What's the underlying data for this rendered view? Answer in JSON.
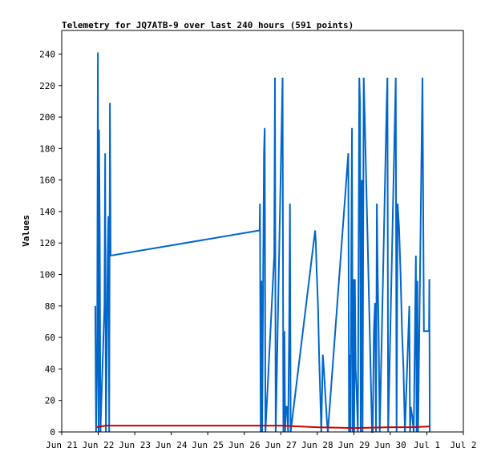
{
  "chart_data": {
    "type": "line",
    "title": "Telemetry for JQ7ATB-9 over last 240 hours (591 points)",
    "xlabel": "",
    "ylabel": "Values",
    "xlim": [
      0,
      11
    ],
    "ylim": [
      0,
      255
    ],
    "x_unit": "days since Jun 21",
    "x_ticks": [
      {
        "value": 0,
        "label": "Jun 21"
      },
      {
        "value": 1,
        "label": "Jun 22"
      },
      {
        "value": 2,
        "label": "Jun 23"
      },
      {
        "value": 3,
        "label": "Jun 24"
      },
      {
        "value": 4,
        "label": "Jun 25"
      },
      {
        "value": 5,
        "label": "Jun 26"
      },
      {
        "value": 6,
        "label": "Jun 27"
      },
      {
        "value": 7,
        "label": "Jun 28"
      },
      {
        "value": 8,
        "label": "Jun 29"
      },
      {
        "value": 9,
        "label": "Jun 30"
      },
      {
        "value": 10,
        "label": "Jul 1"
      },
      {
        "value": 11,
        "label": "Jul 2"
      }
    ],
    "y_ticks": [
      0,
      20,
      40,
      60,
      80,
      100,
      120,
      140,
      160,
      180,
      200,
      220,
      240
    ],
    "grid": false,
    "legend": "none",
    "series": [
      {
        "color": "#0066cc",
        "points": [
          [
            0.92,
            80
          ],
          [
            0.94,
            0
          ],
          [
            0.97,
            48
          ],
          [
            0.99,
            241
          ],
          [
            1.01,
            0
          ],
          [
            1.02,
            192
          ],
          [
            1.04,
            128
          ],
          [
            1.06,
            0
          ],
          [
            1.17,
            80
          ],
          [
            1.19,
            177
          ],
          [
            1.21,
            0
          ],
          [
            1.26,
            112
          ],
          [
            1.28,
            137
          ],
          [
            1.3,
            0
          ],
          [
            1.32,
            209
          ],
          [
            1.34,
            112
          ],
          [
            5.42,
            128
          ],
          [
            5.43,
            145
          ],
          [
            5.45,
            0
          ],
          [
            5.47,
            96
          ],
          [
            5.49,
            0
          ],
          [
            5.54,
            177
          ],
          [
            5.56,
            193
          ],
          [
            5.58,
            0
          ],
          [
            5.82,
            112
          ],
          [
            5.84,
            225
          ],
          [
            5.86,
            0
          ],
          [
            6.05,
            225
          ],
          [
            6.07,
            0
          ],
          [
            6.1,
            64
          ],
          [
            6.12,
            0
          ],
          [
            6.14,
            16
          ],
          [
            6.17,
            16
          ],
          [
            6.2,
            0
          ],
          [
            6.23,
            64
          ],
          [
            6.25,
            145
          ],
          [
            6.27,
            0
          ],
          [
            6.94,
            128
          ],
          [
            6.96,
            120
          ],
          [
            6.98,
            104
          ],
          [
            7.02,
            80
          ],
          [
            7.05,
            48
          ],
          [
            7.08,
            24
          ],
          [
            7.11,
            0
          ],
          [
            7.15,
            49
          ],
          [
            7.18,
            40
          ],
          [
            7.22,
            24
          ],
          [
            7.26,
            8
          ],
          [
            7.29,
            0
          ],
          [
            7.85,
            177
          ],
          [
            7.87,
            0
          ],
          [
            7.89,
            49
          ],
          [
            7.91,
            0
          ],
          [
            7.93,
            112
          ],
          [
            7.95,
            193
          ],
          [
            7.97,
            0
          ],
          [
            7.99,
            97
          ],
          [
            8.01,
            0
          ],
          [
            8.03,
            97
          ],
          [
            8.05,
            40
          ],
          [
            8.08,
            24
          ],
          [
            8.11,
            0
          ],
          [
            8.15,
            225
          ],
          [
            8.17,
            209
          ],
          [
            8.19,
            0
          ],
          [
            8.22,
            160
          ],
          [
            8.24,
            0
          ],
          [
            8.27,
            225
          ],
          [
            8.3,
            200
          ],
          [
            8.34,
            160
          ],
          [
            8.38,
            120
          ],
          [
            8.42,
            80
          ],
          [
            8.46,
            40
          ],
          [
            8.5,
            0
          ],
          [
            8.52,
            0
          ],
          [
            8.55,
            64
          ],
          [
            8.58,
            82
          ],
          [
            8.61,
            0
          ],
          [
            8.63,
            145
          ],
          [
            8.65,
            105
          ],
          [
            8.68,
            65
          ],
          [
            8.71,
            0
          ],
          [
            8.9,
            209
          ],
          [
            8.92,
            225
          ],
          [
            8.94,
            0
          ],
          [
            9.15,
            225
          ],
          [
            9.17,
            0
          ],
          [
            9.2,
            145
          ],
          [
            9.24,
            130
          ],
          [
            9.28,
            100
          ],
          [
            9.32,
            64
          ],
          [
            9.36,
            40
          ],
          [
            9.4,
            0
          ],
          [
            9.52,
            80
          ],
          [
            9.54,
            0
          ],
          [
            9.56,
            16
          ],
          [
            9.6,
            10
          ],
          [
            9.64,
            0
          ],
          [
            9.7,
            112
          ],
          [
            9.72,
            0
          ],
          [
            9.74,
            96
          ],
          [
            9.76,
            0
          ],
          [
            9.88,
            225
          ],
          [
            9.9,
            145
          ],
          [
            9.92,
            64
          ],
          [
            9.96,
            64
          ],
          [
            10.0,
            64
          ],
          [
            10.04,
            64
          ],
          [
            10.06,
            64
          ],
          [
            10.07,
            97
          ],
          [
            10.08,
            0
          ]
        ]
      },
      {
        "color": "#cc0000",
        "points": [
          [
            0.95,
            3
          ],
          [
            1.2,
            4
          ],
          [
            2.5,
            4
          ],
          [
            4.0,
            4
          ],
          [
            5.4,
            4
          ],
          [
            6.0,
            4
          ],
          [
            6.5,
            3.5
          ],
          [
            7.0,
            3
          ],
          [
            8.0,
            2.5
          ],
          [
            9.0,
            3
          ],
          [
            9.6,
            3
          ],
          [
            10.08,
            3.5
          ]
        ]
      },
      {
        "color": "#000000",
        "points": [
          [
            0.9,
            0
          ],
          [
            5.3,
            0
          ],
          [
            10.08,
            0
          ]
        ]
      }
    ]
  }
}
